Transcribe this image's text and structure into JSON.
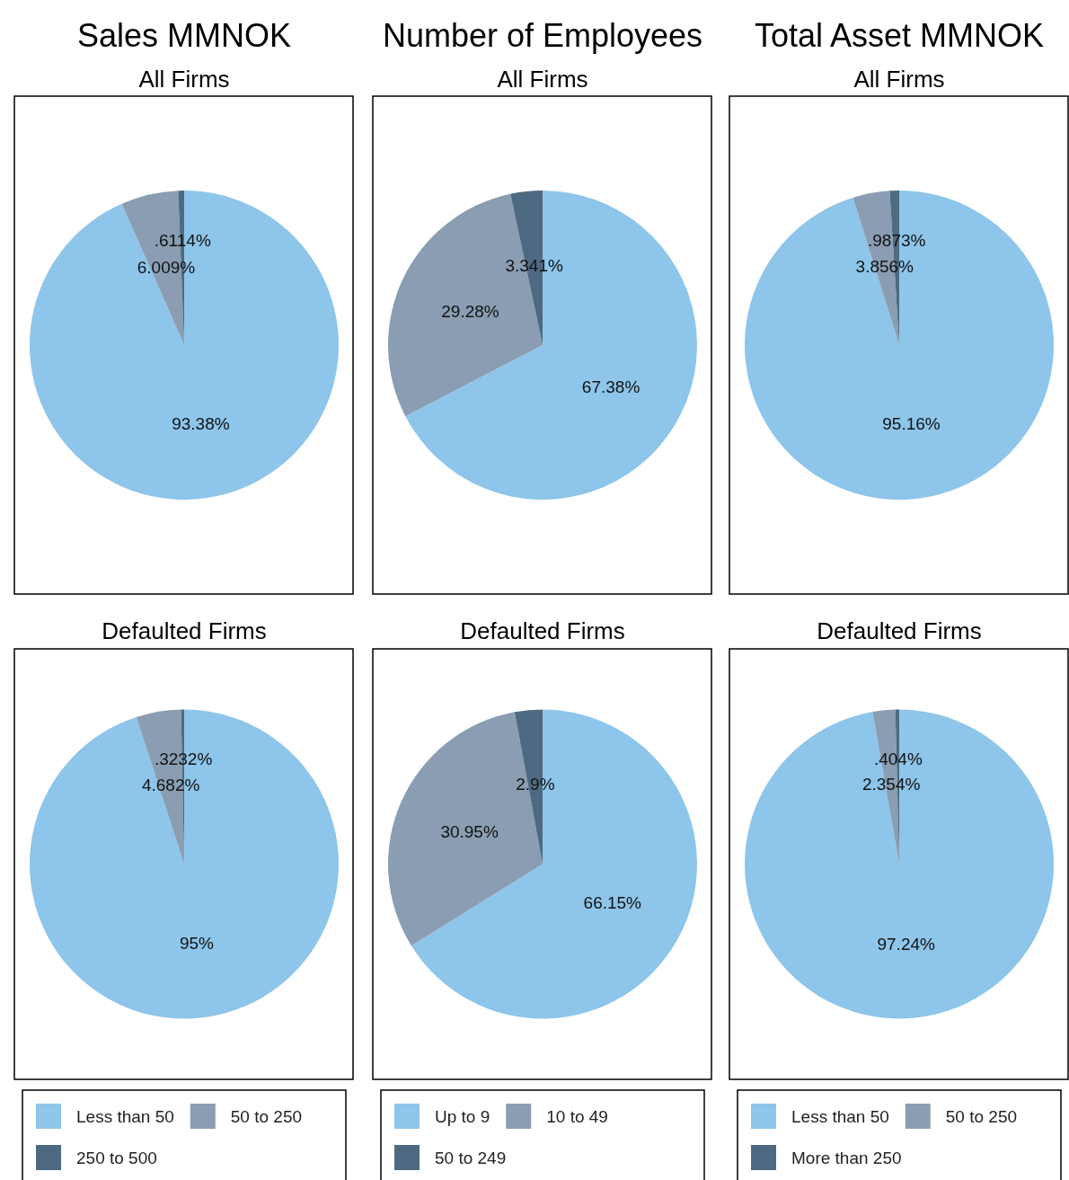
{
  "chart_data": [
    {
      "type": "pie",
      "title": "Sales MMNOK",
      "subtitle": "All Firms",
      "categories": [
        null,
        null,
        null
      ],
      "values": [
        93.38,
        6.009,
        0.6114
      ],
      "value_labels": [
        "93.38%",
        "6.009%",
        ".6114%"
      ],
      "colors": [
        "#8ec5ea",
        "#8a9db2",
        "#4e6a82"
      ]
    },
    {
      "type": "pie",
      "title": "Number of Employees",
      "subtitle": "All Firms",
      "categories": [
        null,
        null,
        null
      ],
      "values": [
        67.38,
        29.28,
        3.341
      ],
      "value_labels": [
        "67.38%",
        "29.28%",
        "3.341%"
      ],
      "colors": [
        "#8ec5ea",
        "#8a9db2",
        "#4e6a82"
      ]
    },
    {
      "type": "pie",
      "title": "Total Asset MMNOK",
      "subtitle": "All Firms",
      "categories": [
        null,
        null,
        null
      ],
      "values": [
        95.16,
        3.856,
        0.9873
      ],
      "value_labels": [
        "95.16%",
        "3.856%",
        ".9873%"
      ],
      "colors": [
        "#8ec5ea",
        "#8a9db2",
        "#4e6a82"
      ]
    },
    {
      "type": "pie",
      "subtitle": "Defaulted Firms",
      "categories": [
        "Less than 50",
        "50 to 250",
        "250 to 500"
      ],
      "values": [
        95,
        4.682,
        0.3232
      ],
      "value_labels": [
        "95%",
        "4.682%",
        ".3232%"
      ],
      "colors": [
        "#8ec5ea",
        "#8a9db2",
        "#4e6a82"
      ],
      "legend": "bottom"
    },
    {
      "type": "pie",
      "subtitle": "Defaulted Firms",
      "categories": [
        "Up to 9",
        "10 to 49",
        "50 to 249"
      ],
      "values": [
        66.15,
        30.95,
        2.9
      ],
      "value_labels": [
        "66.15%",
        "30.95%",
        "2.9%"
      ],
      "colors": [
        "#8ec5ea",
        "#8a9db2",
        "#4e6a82"
      ],
      "legend": "bottom"
    },
    {
      "type": "pie",
      "subtitle": "Defaulted Firms",
      "categories": [
        "Less than 50",
        "50 to 250",
        "More than 250"
      ],
      "values": [
        97.24,
        2.354,
        0.404
      ],
      "value_labels": [
        "97.24%",
        "2.354%",
        ".404%"
      ],
      "colors": [
        "#8ec5ea",
        "#8a9db2",
        "#4e6a82"
      ],
      "legend": "bottom"
    }
  ]
}
